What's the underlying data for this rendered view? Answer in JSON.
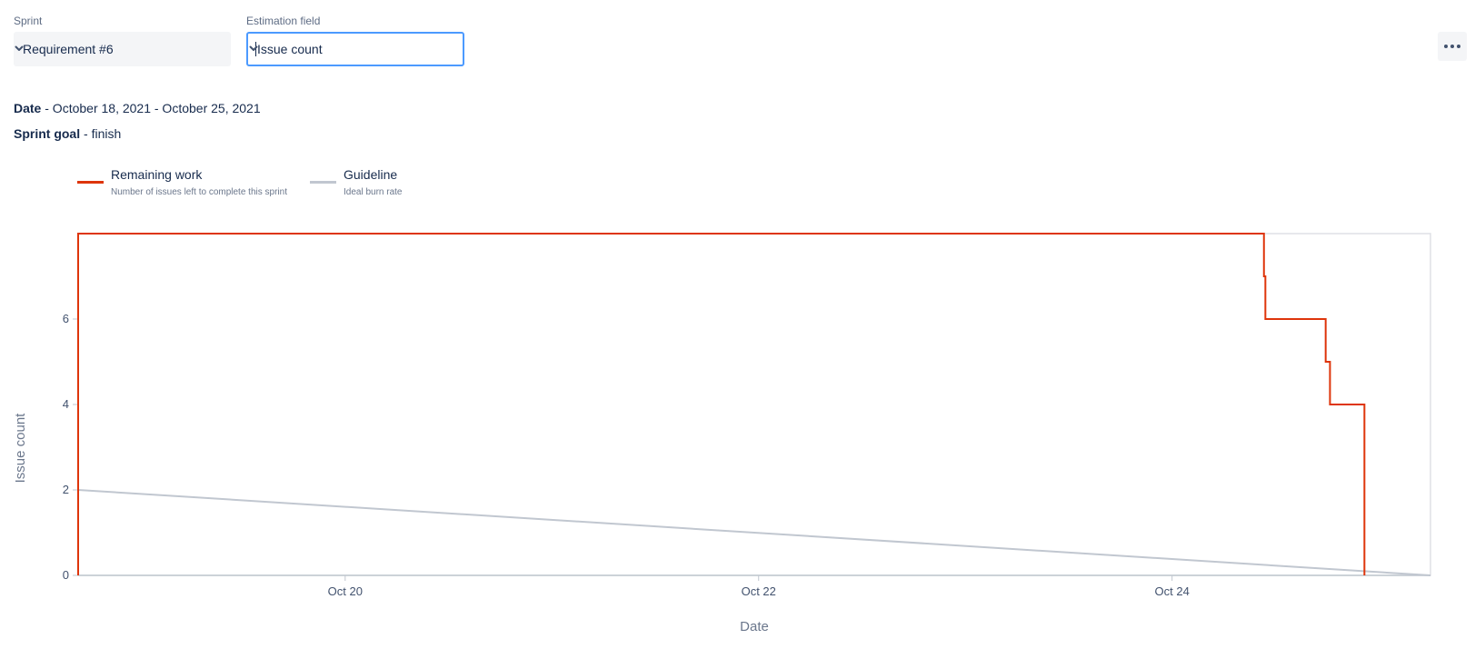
{
  "filters": {
    "sprint_label": "Sprint",
    "sprint_value": "Requirement #6",
    "estimation_label": "Estimation field",
    "estimation_value": "Issue count"
  },
  "more_icon": "more-horizontal-icon",
  "sprint_info": {
    "date_label": "Date",
    "date_value": " - October 18, 2021 - October 25, 2021",
    "goal_label": "Sprint goal",
    "goal_value": " - finish"
  },
  "legend": [
    {
      "title": "Remaining work",
      "subtitle": "Number of issues left to complete this sprint",
      "color": "#de350b"
    },
    {
      "title": "Guideline",
      "subtitle": "Ideal burn rate",
      "color": "#c1c7d0"
    }
  ],
  "chart_data": {
    "type": "line",
    "xlabel": "Date",
    "ylabel": "Issue count",
    "x_ticks": [
      "Oct 20",
      "Oct 22",
      "Oct 24"
    ],
    "y_ticks": [
      0,
      2,
      4,
      6
    ],
    "xlim": [
      "2021-10-18 17:00",
      "2021-10-25 06:00"
    ],
    "ylim": [
      0,
      8
    ],
    "grid": false,
    "series": [
      {
        "name": "Remaining work",
        "color": "#de350b",
        "step": true,
        "points": [
          {
            "x": "2021-10-18 17:00",
            "y": 0
          },
          {
            "x": "2021-10-18 17:00",
            "y": 8
          },
          {
            "x": "2021-10-24 10:40",
            "y": 7
          },
          {
            "x": "2021-10-24 10:50",
            "y": 6
          },
          {
            "x": "2021-10-24 17:50",
            "y": 5
          },
          {
            "x": "2021-10-24 18:20",
            "y": 4
          },
          {
            "x": "2021-10-24 22:20",
            "y": 0
          }
        ]
      },
      {
        "name": "Guideline",
        "color": "#c1c7d0",
        "step": false,
        "points": [
          {
            "x": "2021-10-18 17:00",
            "y": 2
          },
          {
            "x": "2021-10-25 06:00",
            "y": 0
          }
        ]
      }
    ]
  }
}
